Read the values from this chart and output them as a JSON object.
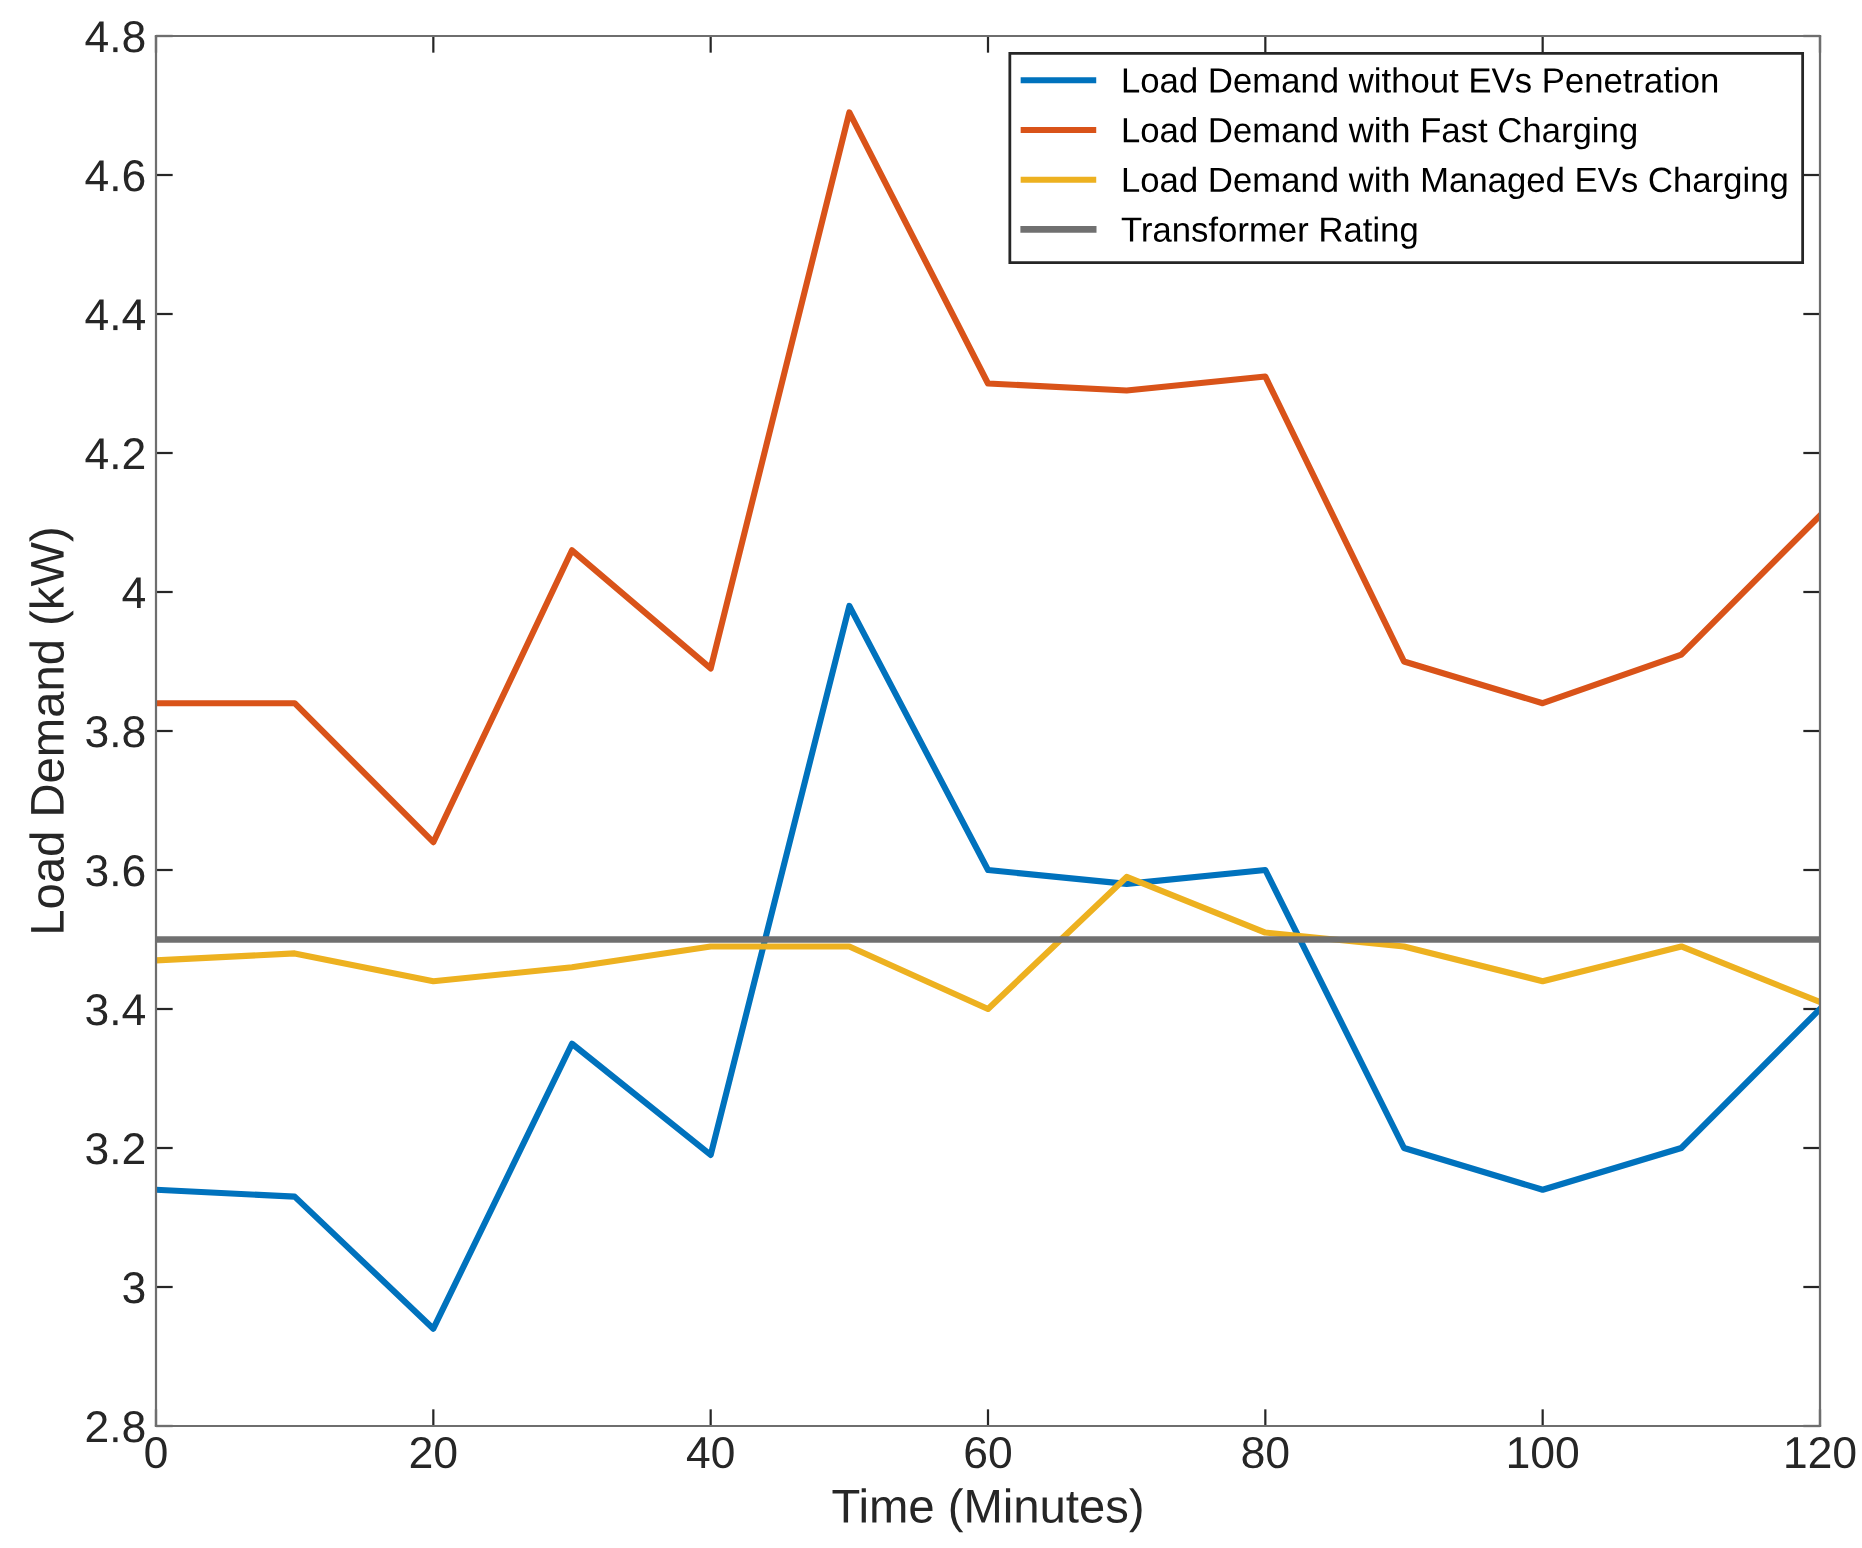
{
  "chart_data": {
    "type": "line",
    "xlabel": "Time (Minutes)",
    "ylabel": "Load Demand (kW)",
    "x": [
      0,
      10,
      20,
      30,
      40,
      50,
      60,
      70,
      80,
      90,
      100,
      110,
      120
    ],
    "series": [
      {
        "name": "Load Demand without EVs Penetration",
        "color": "#0072bd",
        "values": [
          3.14,
          3.13,
          2.94,
          3.35,
          3.19,
          3.98,
          3.6,
          3.58,
          3.6,
          3.2,
          3.14,
          3.2,
          3.4
        ]
      },
      {
        "name": "Load Demand with Fast Charging",
        "color": "#d95319",
        "values": [
          3.84,
          3.84,
          3.64,
          4.06,
          3.89,
          4.69,
          4.3,
          4.29,
          4.31,
          3.9,
          3.84,
          3.91,
          4.11
        ]
      },
      {
        "name": "Load Demand with Managed EVs Charging",
        "color": "#edb120",
        "values": [
          3.47,
          3.48,
          3.44,
          3.46,
          3.49,
          3.49,
          3.4,
          3.59,
          3.51,
          3.49,
          3.44,
          3.49,
          3.41
        ]
      }
    ],
    "ref_lines": [
      {
        "axis": "y",
        "value": 3.5,
        "label": "Transformer Rating",
        "color": "#707070"
      }
    ],
    "xlim": [
      0,
      120
    ],
    "xticks": [
      0,
      20,
      40,
      60,
      80,
      100,
      120
    ],
    "ylim": [
      2.8,
      4.8
    ],
    "yticks": [
      {
        "value": 2.8,
        "label": "2.8"
      },
      {
        "value": 3,
        "label": "3"
      },
      {
        "value": 3.2,
        "label": "3.2"
      },
      {
        "value": 3.4,
        "label": "3.4"
      },
      {
        "value": 3.6,
        "label": "3.6"
      },
      {
        "value": 3.8,
        "label": "3.8"
      },
      {
        "value": 4,
        "label": "4"
      },
      {
        "value": 4.2,
        "label": "4.2"
      },
      {
        "value": 4.4,
        "label": "4.4"
      },
      {
        "value": 4.6,
        "label": "4.6"
      },
      {
        "value": 4.8,
        "label": "4.8"
      }
    ],
    "grid": false,
    "legend": "top right",
    "marker": "none",
    "line_style": "solid"
  }
}
